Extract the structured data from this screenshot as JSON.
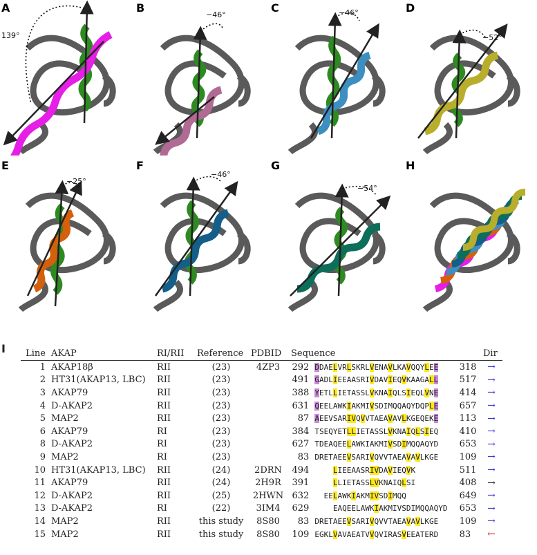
{
  "panels": [
    {
      "label": "A",
      "angle": "139°",
      "color": "#e61ee6"
    },
    {
      "label": "B",
      "angle": "−46°",
      "color": "#b06a94"
    },
    {
      "label": "C",
      "angle": "−46°",
      "color": "#3c8fc0"
    },
    {
      "label": "D",
      "angle": "−52°",
      "color": "#b8ae2c"
    },
    {
      "label": "E",
      "angle": "−25°",
      "color": "#d4600c"
    },
    {
      "label": "F",
      "angle": "−46°",
      "color": "#135f8a"
    },
    {
      "label": "G",
      "angle": "−54°",
      "color": "#0d6e5a"
    },
    {
      "label": "H",
      "angle": "",
      "color": "#666666"
    }
  ],
  "table": {
    "label": "I",
    "headers": [
      "Line",
      "AKAP",
      "RI/RII",
      "Reference",
      "PDBID",
      "Sequence",
      "Dir"
    ],
    "rows": [
      {
        "line": "1",
        "akap": "AKAP18β",
        "type": "RII",
        "ref": "(23)",
        "pdb": "4ZP3",
        "start": "292",
        "seq": "DDAELVRLSKRLVENAVLKAVQQYLEE",
        "end": "318",
        "dir": "→",
        "dircolor": "blue"
      },
      {
        "line": "2",
        "akap": "HT31(AKAP13, LBC)",
        "type": "RII",
        "ref": "(23)",
        "pdb": "",
        "start": "491",
        "seq": "GADLIEEAASRIVDAVIEQVKAAGALL",
        "end": "517",
        "dir": "→",
        "dircolor": "blue"
      },
      {
        "line": "3",
        "akap": "AKAP79",
        "type": "RII",
        "ref": "(23)",
        "pdb": "",
        "start": "388",
        "seq": "YETLLIETASSLVKNAIQLSIEQLVNE",
        "end": "414",
        "dir": "→",
        "dircolor": "blue"
      },
      {
        "line": "4",
        "akap": "D-AKAP2",
        "type": "RII",
        "ref": "(23)",
        "pdb": "",
        "start": "631",
        "seq": "QEELAWKIAKMIVSDIMQQAQYDQPLE",
        "end": "657",
        "dir": "→",
        "dircolor": "blue"
      },
      {
        "line": "5",
        "akap": "MAP2",
        "type": "RII",
        "ref": "(23)",
        "pdb": "",
        "start": "87",
        "seq": "AEEVSARIVQVVTAEAVAVLKGEQEKE",
        "end": "113",
        "dir": "→",
        "dircolor": "blue"
      },
      {
        "line": "6",
        "akap": "AKAP79",
        "type": "RI",
        "ref": "(23)",
        "pdb": "",
        "start": "384",
        "seq": "TSEQYETLLIETASSLVKNAIQLSIEQ",
        "end": "410",
        "dir": "→",
        "dircolor": "blue"
      },
      {
        "line": "8",
        "akap": "D-AKAP2",
        "type": "RI",
        "ref": "(23)",
        "pdb": "",
        "start": "627",
        "seq": "TDEAQEELAWKIAKMIVSDIMQQAQYD",
        "end": "653",
        "dir": "→",
        "dircolor": "blue"
      },
      {
        "line": "9",
        "akap": "MAP2",
        "type": "RI",
        "ref": "(23)",
        "pdb": "",
        "start": "83",
        "seq": "DRETAEEVSARIVQVVTAEAVAVLKGE",
        "end": "109",
        "dir": "→",
        "dircolor": "blue"
      },
      {
        "line": "10",
        "akap": "HT31(AKAP13, LBC)",
        "type": "RII",
        "ref": "(24)",
        "pdb": "2DRN",
        "start": "494",
        "seq": "    LIEEAASRIVDAVIEQVK      ",
        "end": "511",
        "dir": "→",
        "dircolor": "blue"
      },
      {
        "line": "11",
        "akap": "AKAP79",
        "type": "RII",
        "ref": "(24)",
        "pdb": "2H9R",
        "start": "391",
        "seq": "    LLIETASSLVKNAIQLSI      ",
        "end": "408",
        "dir": "→",
        "dircolor": "black"
      },
      {
        "line": "12",
        "akap": "D-AKAP2",
        "type": "RII",
        "ref": "(25)",
        "pdb": "2HWN",
        "start": "632",
        "seq": "  EELAWKIAKMIVSDIMQQ        ",
        "end": "649",
        "dir": "→",
        "dircolor": "blue"
      },
      {
        "line": "13",
        "akap": "D-AKAP2",
        "type": "RI",
        "ref": "(22)",
        "pdb": "3IM4",
        "start": "629",
        "seq": "    EAQEELAWKIAKMIVSDIMQQAQYD",
        "end": "653",
        "dir": "→",
        "dircolor": "blue"
      },
      {
        "line": "14",
        "akap": "MAP2",
        "type": "RII",
        "ref": "this study",
        "pdb": "8S80",
        "start": "83",
        "seq": "DRETAEEVSARIVQVVTAEAVAVLKGE",
        "end": "109",
        "dir": "→",
        "dircolor": "blue"
      },
      {
        "line": "15",
        "akap": "MAP2",
        "type": "RII",
        "ref": "this study",
        "pdb": "8S80",
        "start": "109",
        "seq": "EGKLVAVAEATVVQVIRASVEEATERD",
        "end": "83",
        "dir": "←",
        "dircolor": "red"
      }
    ]
  }
}
